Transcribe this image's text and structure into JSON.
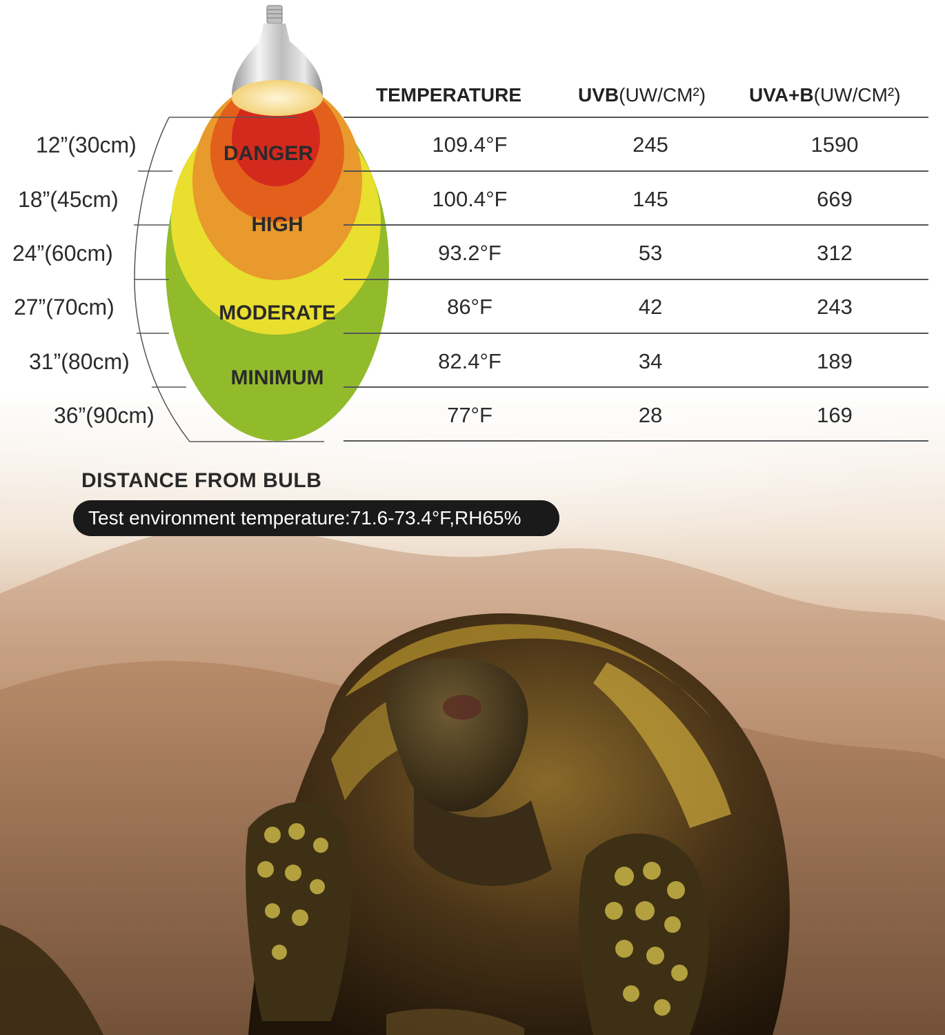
{
  "headers": {
    "temperature": "TEMPERATURE",
    "uvb_bold": "UVB",
    "uvb_unit": "(UW/CM²)",
    "uvab_bold": "UVA+B",
    "uvab_unit": "(UW/CM²)"
  },
  "zones": {
    "danger": "DANGER",
    "high": "HIGH",
    "moderate": "MODERATE",
    "minimum": "MINIMUM"
  },
  "rows": [
    {
      "distance": "12”(30cm)",
      "temperature": "109.4°F",
      "uvb": "245",
      "uvab": "1590"
    },
    {
      "distance": "18”(45cm)",
      "temperature": "100.4°F",
      "uvb": "145",
      "uvab": "669"
    },
    {
      "distance": "24”(60cm)",
      "temperature": "93.2°F",
      "uvb": "53",
      "uvab": "312"
    },
    {
      "distance": "27”(70cm)",
      "temperature": "86°F",
      "uvb": "42",
      "uvab": "243"
    },
    {
      "distance": "31”(80cm)",
      "temperature": "82.4°F",
      "uvb": "34",
      "uvab": "189"
    },
    {
      "distance": "36”(90cm)",
      "temperature": "77°F",
      "uvb": "28",
      "uvab": "169"
    }
  ],
  "distance_title": "DISTANCE FROM BULB",
  "test_environment": "Test environment temperature:71.6-73.4°F,RH65%",
  "colors": {
    "danger": "#d42a1e",
    "high": "#e2601c",
    "warm": "#e99a2c",
    "moderate": "#e9df2e",
    "minimum": "#92bb2c",
    "pill": "#1a1a1a"
  }
}
